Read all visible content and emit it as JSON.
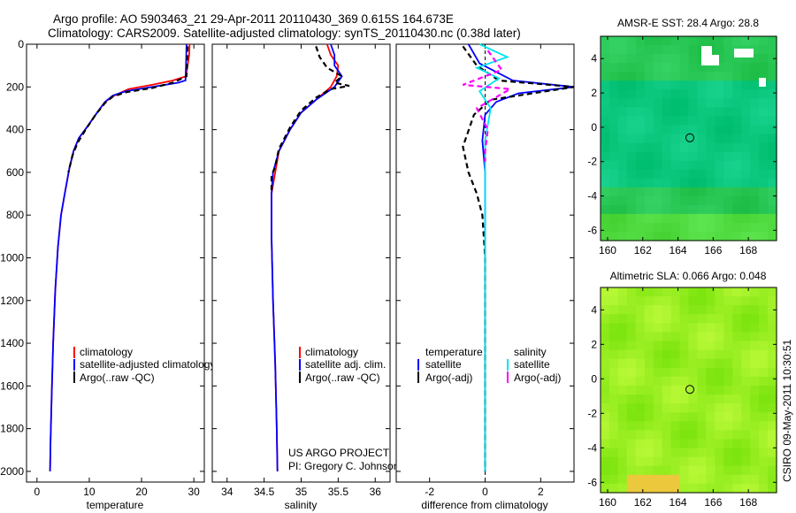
{
  "header": {
    "line1": "Argo profile: AO 5903463_21 29-Apr-2011 20110430_369 0.615S 164.673E",
    "line2": "Climatology: CARS2009. Satellite-adjusted climatology: synTS_20110430.nc (0.38d later)"
  },
  "footer": {
    "project": "US ARGO PROJECT",
    "pi": "PI: Gregory C. Johnson",
    "stamp": "CSIRO 09-May-2011 10:30:51"
  },
  "colors": {
    "climatology": "#ff0000",
    "satellite": "#0000ff",
    "argo": "#000000",
    "salinity_satellite": "#00e5ee",
    "salinity_argo": "#ff00ff",
    "sst_map": "#33cc55",
    "sla_map": "#99ee22"
  },
  "chart_data": [
    {
      "type": "line",
      "title": "",
      "xlabel": "temperature",
      "ylabel": "",
      "xlim": [
        -2,
        32
      ],
      "ylim": [
        2050,
        0
      ],
      "xticks": [
        "0",
        "10",
        "20",
        "30"
      ],
      "yticks": [
        "0",
        "200",
        "400",
        "600",
        "800",
        "1000",
        "1200",
        "1400",
        "1600",
        "1800",
        "2000"
      ],
      "legend_placement": "lower-right",
      "series": [
        {
          "name": "climatology",
          "color_key": "climatology",
          "dash": false,
          "x": [
            29.2,
            29.1,
            28.5,
            26.0,
            22.0,
            17.5,
            14.8,
            13.0,
            11.5,
            9.5,
            8.0,
            7.0,
            6.2,
            5.3,
            4.6,
            4.0,
            3.5,
            3.1,
            2.8,
            2.6,
            2.5
          ],
          "y": [
            0,
            50,
            150,
            170,
            190,
            210,
            240,
            270,
            320,
            390,
            440,
            500,
            580,
            700,
            800,
            950,
            1150,
            1400,
            1650,
            1850,
            2000
          ]
        },
        {
          "name": "satellite-adjusted climatology",
          "color_key": "satellite",
          "dash": false,
          "x": [
            28.6,
            28.5,
            28.4,
            27.0,
            22.0,
            17.0,
            14.5,
            13.0,
            11.5,
            9.5,
            8.0,
            7.0,
            6.2,
            5.3,
            4.6,
            4.0,
            3.5,
            3.1,
            2.8,
            2.6,
            2.5
          ],
          "y": [
            0,
            100,
            170,
            180,
            200,
            220,
            240,
            270,
            320,
            390,
            440,
            500,
            580,
            700,
            800,
            950,
            1150,
            1400,
            1650,
            1850,
            2000
          ]
        },
        {
          "name": "Argo(..raw -QC)",
          "color_key": "argo",
          "dash": true,
          "x": [
            28.8,
            28.7,
            28.6,
            26.0,
            22.0,
            17.0,
            14.5,
            13.0,
            11.2,
            9.3,
            7.8,
            6.8,
            6.0
          ],
          "y": [
            10,
            100,
            150,
            180,
            205,
            225,
            245,
            275,
            330,
            400,
            460,
            520,
            600
          ]
        }
      ]
    },
    {
      "type": "line",
      "title": "",
      "xlabel": "salinity",
      "ylabel": "",
      "xlim": [
        33.8,
        36.2
      ],
      "ylim": [
        2050,
        0
      ],
      "xticks": [
        "34",
        "34.5",
        "35",
        "35.5",
        "36"
      ],
      "legend_placement": "lower-right",
      "series": [
        {
          "name": "climatology",
          "color_key": "climatology",
          "dash": false,
          "x": [
            35.35,
            35.4,
            35.5,
            35.48,
            35.4,
            35.2,
            35.0,
            34.85,
            34.7,
            34.65,
            34.6,
            34.6,
            34.62,
            34.65,
            34.67,
            34.68
          ],
          "y": [
            0,
            50,
            100,
            150,
            200,
            260,
            320,
            400,
            500,
            600,
            700,
            900,
            1200,
            1500,
            1800,
            2000
          ]
        },
        {
          "name": "satellite adj. clim.",
          "color_key": "satellite",
          "dash": false,
          "x": [
            35.4,
            35.45,
            35.45,
            35.55,
            35.45,
            35.2,
            35.0,
            34.85,
            34.7,
            34.62,
            34.6,
            34.6,
            34.62,
            34.65,
            34.67,
            34.68
          ],
          "y": [
            0,
            50,
            100,
            150,
            200,
            260,
            320,
            400,
            500,
            600,
            700,
            900,
            1200,
            1500,
            1800,
            2000
          ]
        },
        {
          "name": "Argo(..raw -QC)",
          "color_key": "argo",
          "dash": true,
          "x": [
            35.2,
            35.25,
            35.35,
            35.55,
            35.45,
            35.65,
            35.4,
            35.2,
            35.0,
            34.85,
            34.7,
            34.65,
            34.6,
            34.6
          ],
          "y": [
            10,
            60,
            110,
            150,
            180,
            195,
            210,
            250,
            310,
            390,
            490,
            570,
            620,
            700
          ]
        }
      ]
    },
    {
      "type": "line",
      "title": "",
      "xlabel": "difference from climatology",
      "ylabel": "",
      "xlim": [
        -3.2,
        3.2
      ],
      "ylim": [
        2050,
        0
      ],
      "xticks": [
        "-2",
        "0",
        "2"
      ],
      "legend_placement": "lower-right",
      "legend_groups": [
        "temperature",
        "salinity"
      ],
      "series": [
        {
          "name": "satellite",
          "group": "temperature",
          "color_key": "satellite",
          "dash": false,
          "x": [
            -0.6,
            -0.2,
            1.0,
            3.2,
            1.2,
            0.4,
            0.0,
            -0.1,
            0.0,
            0.0,
            0.0,
            0.0
          ],
          "y": [
            0,
            90,
            170,
            200,
            230,
            270,
            330,
            450,
            600,
            900,
            1400,
            2000
          ]
        },
        {
          "name": "Argo(-adj)",
          "group": "temperature",
          "color_key": "argo",
          "dash": true,
          "x": [
            -0.8,
            -0.3,
            0.5,
            3.2,
            0.2,
            -0.4,
            -0.8,
            -0.6,
            -0.3,
            -0.1,
            0.0,
            0.0
          ],
          "y": [
            10,
            100,
            170,
            200,
            260,
            330,
            480,
            600,
            700,
            800,
            1000,
            2000
          ]
        },
        {
          "name": "satellite",
          "group": "salinity",
          "color_key": "salinity_satellite",
          "dash": false,
          "x": [
            -0.2,
            0.8,
            -0.3,
            0.5,
            -0.2,
            0.2,
            0.0,
            0.0,
            0.0,
            0.0
          ],
          "y": [
            0,
            60,
            110,
            160,
            220,
            300,
            450,
            700,
            1200,
            2000
          ]
        },
        {
          "name": "Argo(-adj)",
          "group": "salinity",
          "color_key": "salinity_argo",
          "dash": true,
          "x": [
            0.1,
            0.6,
            -0.8,
            0.9,
            -0.3,
            0.1,
            0.0,
            0.0
          ],
          "y": [
            30,
            120,
            190,
            210,
            300,
            400,
            500,
            550
          ]
        }
      ]
    },
    {
      "type": "heatmap",
      "title": "AMSR-E SST: 28.4 Argo: 28.8",
      "xlim": [
        159.6,
        169.6
      ],
      "ylim": [
        -6.6,
        5.3
      ],
      "xticks": [
        "160",
        "162",
        "164",
        "166",
        "168"
      ],
      "yticks": [
        "4",
        "2",
        "0",
        "-2",
        "-4",
        "-6"
      ],
      "marker": {
        "lon": 164.673,
        "lat": -0.615
      }
    },
    {
      "type": "heatmap",
      "title": "Altimetric SLA: 0.066 Argo: 0.048",
      "xlim": [
        159.6,
        169.6
      ],
      "ylim": [
        -6.6,
        5.3
      ],
      "xticks": [
        "160",
        "162",
        "164",
        "166",
        "168"
      ],
      "yticks": [
        "4",
        "2",
        "0",
        "-2",
        "-4",
        "-6"
      ],
      "marker": {
        "lon": 164.673,
        "lat": -0.615
      }
    }
  ]
}
